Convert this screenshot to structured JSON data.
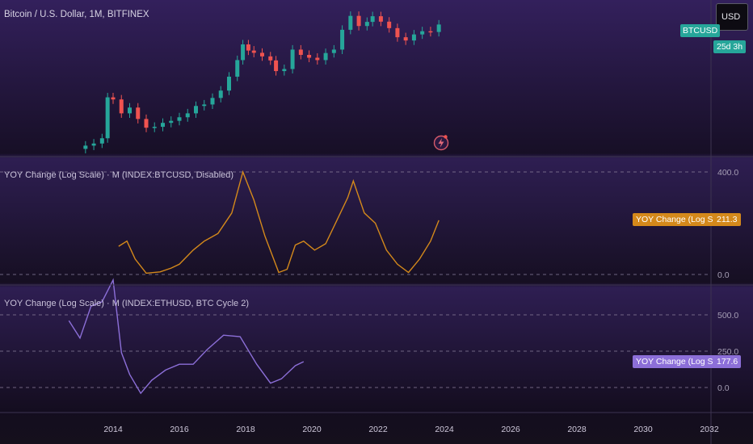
{
  "header": {
    "title": "Bitcoin / U.S. Dollar, 1M, BITFINEX"
  },
  "currency_button": "USD",
  "price_badge": {
    "symbol": "BTCUSD",
    "countdown": "25d 3h",
    "color": "#26a69a"
  },
  "indicator_1": {
    "title": "YOY Change (Log Scale) · M (INDEX:BTCUSD, Disabled)",
    "badge_label": "YOY Change (Log Scale)",
    "badge_value": "211.3",
    "color": "#d4891b"
  },
  "indicator_2": {
    "title": "YOY Change (Log Scale) · M (INDEX:ETHUSD, BTC Cycle 2)",
    "badge_label": "YOY Change (Log Scale)",
    "badge_value": "177.6",
    "color": "#8c6fd8"
  },
  "colors": {
    "up": "#26a69a",
    "down": "#ef5350"
  },
  "chart_data": [
    {
      "type": "candlestick",
      "title": "Bitcoin / U.S. Dollar, 1M, BITFINEX",
      "scale": "log",
      "x": [
        "2013-03",
        "2013-06",
        "2013-09",
        "2013-11",
        "2014-01",
        "2014-04",
        "2014-07",
        "2014-10",
        "2015-01",
        "2015-04",
        "2015-07",
        "2015-10",
        "2016-01",
        "2016-04",
        "2016-07",
        "2016-10",
        "2017-01",
        "2017-04",
        "2017-07",
        "2017-10",
        "2017-12",
        "2018-02",
        "2018-04",
        "2018-07",
        "2018-10",
        "2018-12",
        "2019-03",
        "2019-06",
        "2019-09",
        "2019-12",
        "2020-03",
        "2020-06",
        "2020-09",
        "2020-12",
        "2021-03",
        "2021-06",
        "2021-09",
        "2021-11",
        "2022-02",
        "2022-05",
        "2022-08",
        "2022-11",
        "2023-02",
        "2023-05",
        "2023-08",
        "2023-11"
      ],
      "close": [
        90,
        100,
        130,
        1000,
        900,
        450,
        600,
        340,
        220,
        230,
        280,
        310,
        370,
        450,
        650,
        700,
        970,
        1400,
        2800,
        6400,
        14000,
        10300,
        9200,
        7700,
        6300,
        3700,
        4100,
        10800,
        8300,
        7200,
        6400,
        9100,
        10800,
        29000,
        58000,
        35000,
        43000,
        57000,
        43500,
        31500,
        20000,
        17000,
        23000,
        27000,
        26000,
        37700
      ],
      "x_ticks": [
        "2014",
        "2016",
        "2018",
        "2020",
        "2022",
        "2024",
        "2026",
        "2028",
        "2030",
        "2032"
      ]
    },
    {
      "type": "line",
      "name": "YOY Change (Log Scale)",
      "x": [
        "2014-03",
        "2014-06",
        "2014-09",
        "2015-01",
        "2015-06",
        "2015-10",
        "2016-01",
        "2016-06",
        "2016-10",
        "2017-03",
        "2017-08",
        "2017-12",
        "2018-04",
        "2018-08",
        "2019-01",
        "2019-04",
        "2019-07",
        "2019-10",
        "2020-02",
        "2020-06",
        "2020-10",
        "2021-02",
        "2021-04",
        "2021-08",
        "2021-12",
        "2022-04",
        "2022-08",
        "2022-12",
        "2023-04",
        "2023-08",
        "2023-11"
      ],
      "y": [
        110,
        130,
        60,
        5,
        10,
        25,
        40,
        95,
        130,
        160,
        240,
        400,
        290,
        150,
        8,
        20,
        115,
        130,
        95,
        120,
        210,
        300,
        365,
        240,
        200,
        95,
        40,
        8,
        60,
        130,
        211.3
      ],
      "y_ticks": [
        "400.0",
        "0.0"
      ]
    },
    {
      "type": "line",
      "name": "YOY Change (Log Scale)",
      "x": [
        "2012-09",
        "2013-01",
        "2013-05",
        "2013-09",
        "2014-01",
        "2014-04",
        "2014-07",
        "2014-11",
        "2015-03",
        "2015-08",
        "2016-01",
        "2016-06",
        "2016-11",
        "2017-05",
        "2017-11",
        "2018-05",
        "2018-10",
        "2019-02",
        "2019-07",
        "2019-10"
      ],
      "y": [
        460,
        340,
        560,
        590,
        740,
        240,
        90,
        -40,
        50,
        120,
        160,
        160,
        260,
        360,
        350,
        160,
        30,
        60,
        150,
        177.6
      ],
      "y_ticks": [
        "500.0",
        "250.0",
        "0.0"
      ]
    }
  ]
}
